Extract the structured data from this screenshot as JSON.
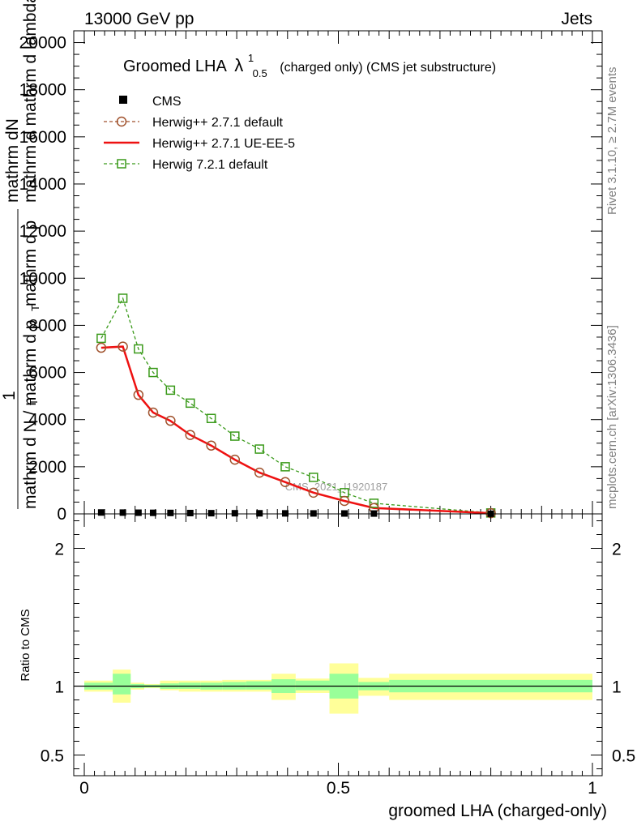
{
  "header": {
    "left": "13000 GeV pp",
    "right": "Jets"
  },
  "side_text": {
    "rivet": "Rivet 3.1.10, ≥ 2.7M events",
    "mcplots": "mcplots.cern.ch [arXiv:1306.3436]"
  },
  "watermark": "CMS_2021_I1920187",
  "colors": {
    "cms": "#000000",
    "herwig_default": "#a0522d",
    "herwig_ue": "#ee1111",
    "herwig7": "#3a9a1a",
    "band_inner": "#99ff99",
    "band_outer": "#ffff99"
  },
  "chart_data": [
    {
      "type": "line",
      "title": "Groomed LHA",
      "title_symbol": "λ",
      "title_sup": "1",
      "title_sub": "0.5",
      "title_suffix": "(charged only) (CMS jet substructure)",
      "ylabel": "1 / mathrm d N / mathrm d p_T mathrm d^2N / mathrm d p_T mathrm d lambda",
      "ylabel_lines": [
        "mathrm dN",
        "mathrm d p",
        "T",
        "mathrm d mathrm d lambda",
        "1",
        "mathrm d N / mathrm d p",
        "T"
      ],
      "xlim": [
        0,
        1
      ],
      "ylim": [
        0,
        20500
      ],
      "yticks": [
        0,
        2000,
        4000,
        6000,
        8000,
        10000,
        12000,
        14000,
        16000,
        18000,
        20000
      ],
      "ytick_labels": [
        "0",
        "2000",
        "4000",
        "6000",
        "8000",
        "10000",
        "12000",
        "14000",
        "16000",
        "18000",
        "20000"
      ],
      "legend": [
        "CMS",
        "Herwig++ 2.7.1 default",
        "Herwig++ 2.7.1 UE-EE-5",
        "Herwig 7.2.1 default"
      ],
      "x": [
        0.0333,
        0.0759,
        0.1066,
        0.1355,
        0.1696,
        0.2085,
        0.2498,
        0.2963,
        0.3448,
        0.3955,
        0.451,
        0.5119,
        0.57,
        0.8
      ],
      "series": [
        {
          "name": "CMS",
          "values": [
            60,
            55,
            50,
            45,
            40,
            35,
            30,
            28,
            25,
            22,
            20,
            18,
            15,
            5
          ]
        },
        {
          "name": "Herwig++ 2.7.1 default",
          "values": [
            7050,
            7100,
            5050,
            4300,
            3950,
            3350,
            2900,
            2300,
            1750,
            1350,
            900,
            550,
            250,
            30
          ]
        },
        {
          "name": "Herwig++ 2.7.1 UE-EE-5",
          "values": [
            7050,
            7100,
            5050,
            4300,
            3950,
            3350,
            2900,
            2300,
            1750,
            1350,
            900,
            550,
            250,
            30
          ]
        },
        {
          "name": "Herwig 7.2.1 default",
          "values": [
            7450,
            9150,
            7000,
            6000,
            5250,
            4700,
            4050,
            3300,
            2750,
            2000,
            1550,
            900,
            450,
            40
          ]
        }
      ]
    },
    {
      "type": "area",
      "title": "",
      "xlabel": "groomed LHA (charged-only)",
      "ylabel": "Ratio to CMS",
      "xlim": [
        0,
        1
      ],
      "ylim": [
        0.35,
        2.25
      ],
      "yticks": [
        0.5,
        1,
        2
      ],
      "ytick_labels": [
        "0.5",
        "1",
        "2"
      ],
      "xticks": [
        0,
        0.5,
        1
      ],
      "xtick_labels": [
        "0",
        "0.5",
        "1"
      ],
      "bin_edges": [
        0,
        0.056,
        0.0913,
        0.118,
        0.149,
        0.186,
        0.2285,
        0.2715,
        0.3185,
        0.3685,
        0.416,
        0.4825,
        0.5395,
        0.6,
        1.0
      ],
      "band_inner": [
        [
          0.975,
          1.025
        ],
        [
          0.94,
          1.09
        ],
        [
          0.985,
          1.015
        ],
        [
          0.99,
          1.01
        ],
        [
          0.98,
          1.02
        ],
        [
          0.98,
          1.025
        ],
        [
          0.975,
          1.025
        ],
        [
          0.975,
          1.03
        ],
        [
          0.975,
          1.035
        ],
        [
          0.95,
          1.05
        ],
        [
          0.97,
          1.04
        ],
        [
          0.91,
          1.09
        ],
        [
          0.97,
          1.03
        ],
        [
          0.955,
          1.045
        ]
      ],
      "band_outer": [
        [
          0.96,
          1.04
        ],
        [
          0.88,
          1.12
        ],
        [
          0.975,
          1.025
        ],
        [
          0.985,
          1.015
        ],
        [
          0.97,
          1.04
        ],
        [
          0.96,
          1.04
        ],
        [
          0.96,
          1.04
        ],
        [
          0.96,
          1.045
        ],
        [
          0.96,
          1.045
        ],
        [
          0.9,
          1.09
        ],
        [
          0.95,
          1.055
        ],
        [
          0.8,
          1.165
        ],
        [
          0.93,
          1.06
        ],
        [
          0.9,
          1.09
        ]
      ],
      "reference": 1
    }
  ]
}
